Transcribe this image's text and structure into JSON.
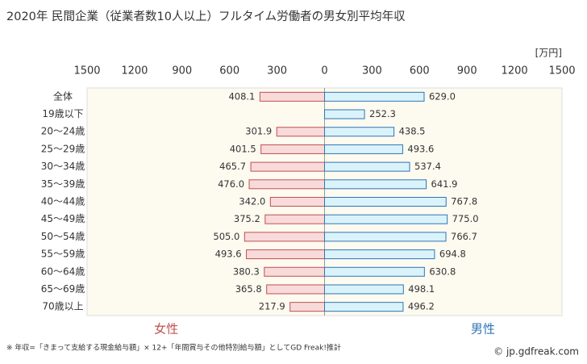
{
  "chart_data": {
    "type": "butterfly",
    "title": "2020年 民間企業（従業者数10人以上）フルタイム労働者の男女別平均年収",
    "unit": "[万円]",
    "categories": [
      "全体",
      "19歳以下",
      "20～24歳",
      "25～29歳",
      "30～34歳",
      "35～39歳",
      "40～44歳",
      "45～49歳",
      "50～54歳",
      "55～59歳",
      "60～64歳",
      "65～69歳",
      "70歳以上"
    ],
    "series": [
      {
        "name": "女性",
        "side": "left",
        "color": "#f9dada",
        "edge": "#c0504d",
        "label_color": "#c0504d",
        "values": [
          408.1,
          null,
          301.9,
          401.5,
          465.7,
          476.0,
          342.0,
          375.2,
          505.0,
          493.6,
          380.3,
          365.8,
          217.9
        ],
        "value_labels": [
          "408.1",
          null,
          "301.9",
          "401.5",
          "465.7",
          "476.0",
          "342.0",
          "375.2",
          "505.0",
          "493.6",
          "380.3",
          "365.8",
          "217.9"
        ]
      },
      {
        "name": "男性",
        "side": "right",
        "color": "#daf3fb",
        "edge": "#2e75b6",
        "label_color": "#2e75b6",
        "values": [
          629.0,
          252.3,
          438.5,
          493.6,
          537.4,
          641.9,
          767.8,
          775.0,
          766.7,
          694.8,
          630.8,
          498.1,
          496.2
        ],
        "value_labels": [
          "629.0",
          "252.3",
          "438.5",
          "493.6",
          "537.4",
          "641.9",
          "767.8",
          "775.0",
          "766.7",
          "694.8",
          "630.8",
          "498.1",
          "496.2"
        ]
      }
    ],
    "xlim": [
      -1500,
      1500
    ],
    "xticks": [
      {
        "value": -1500,
        "label": "1500"
      },
      {
        "value": -1200,
        "label": "1200"
      },
      {
        "value": -900,
        "label": "900"
      },
      {
        "value": -600,
        "label": "600"
      },
      {
        "value": -300,
        "label": "300"
      },
      0,
      300,
      600,
      900,
      1200,
      1500
    ],
    "note": "※ 年収=「きまって支給する現金給与額」× 12+「年間賞与その他特別給与額」としてGD Freak!推計",
    "credit": "© jp.gdfreak.com"
  }
}
